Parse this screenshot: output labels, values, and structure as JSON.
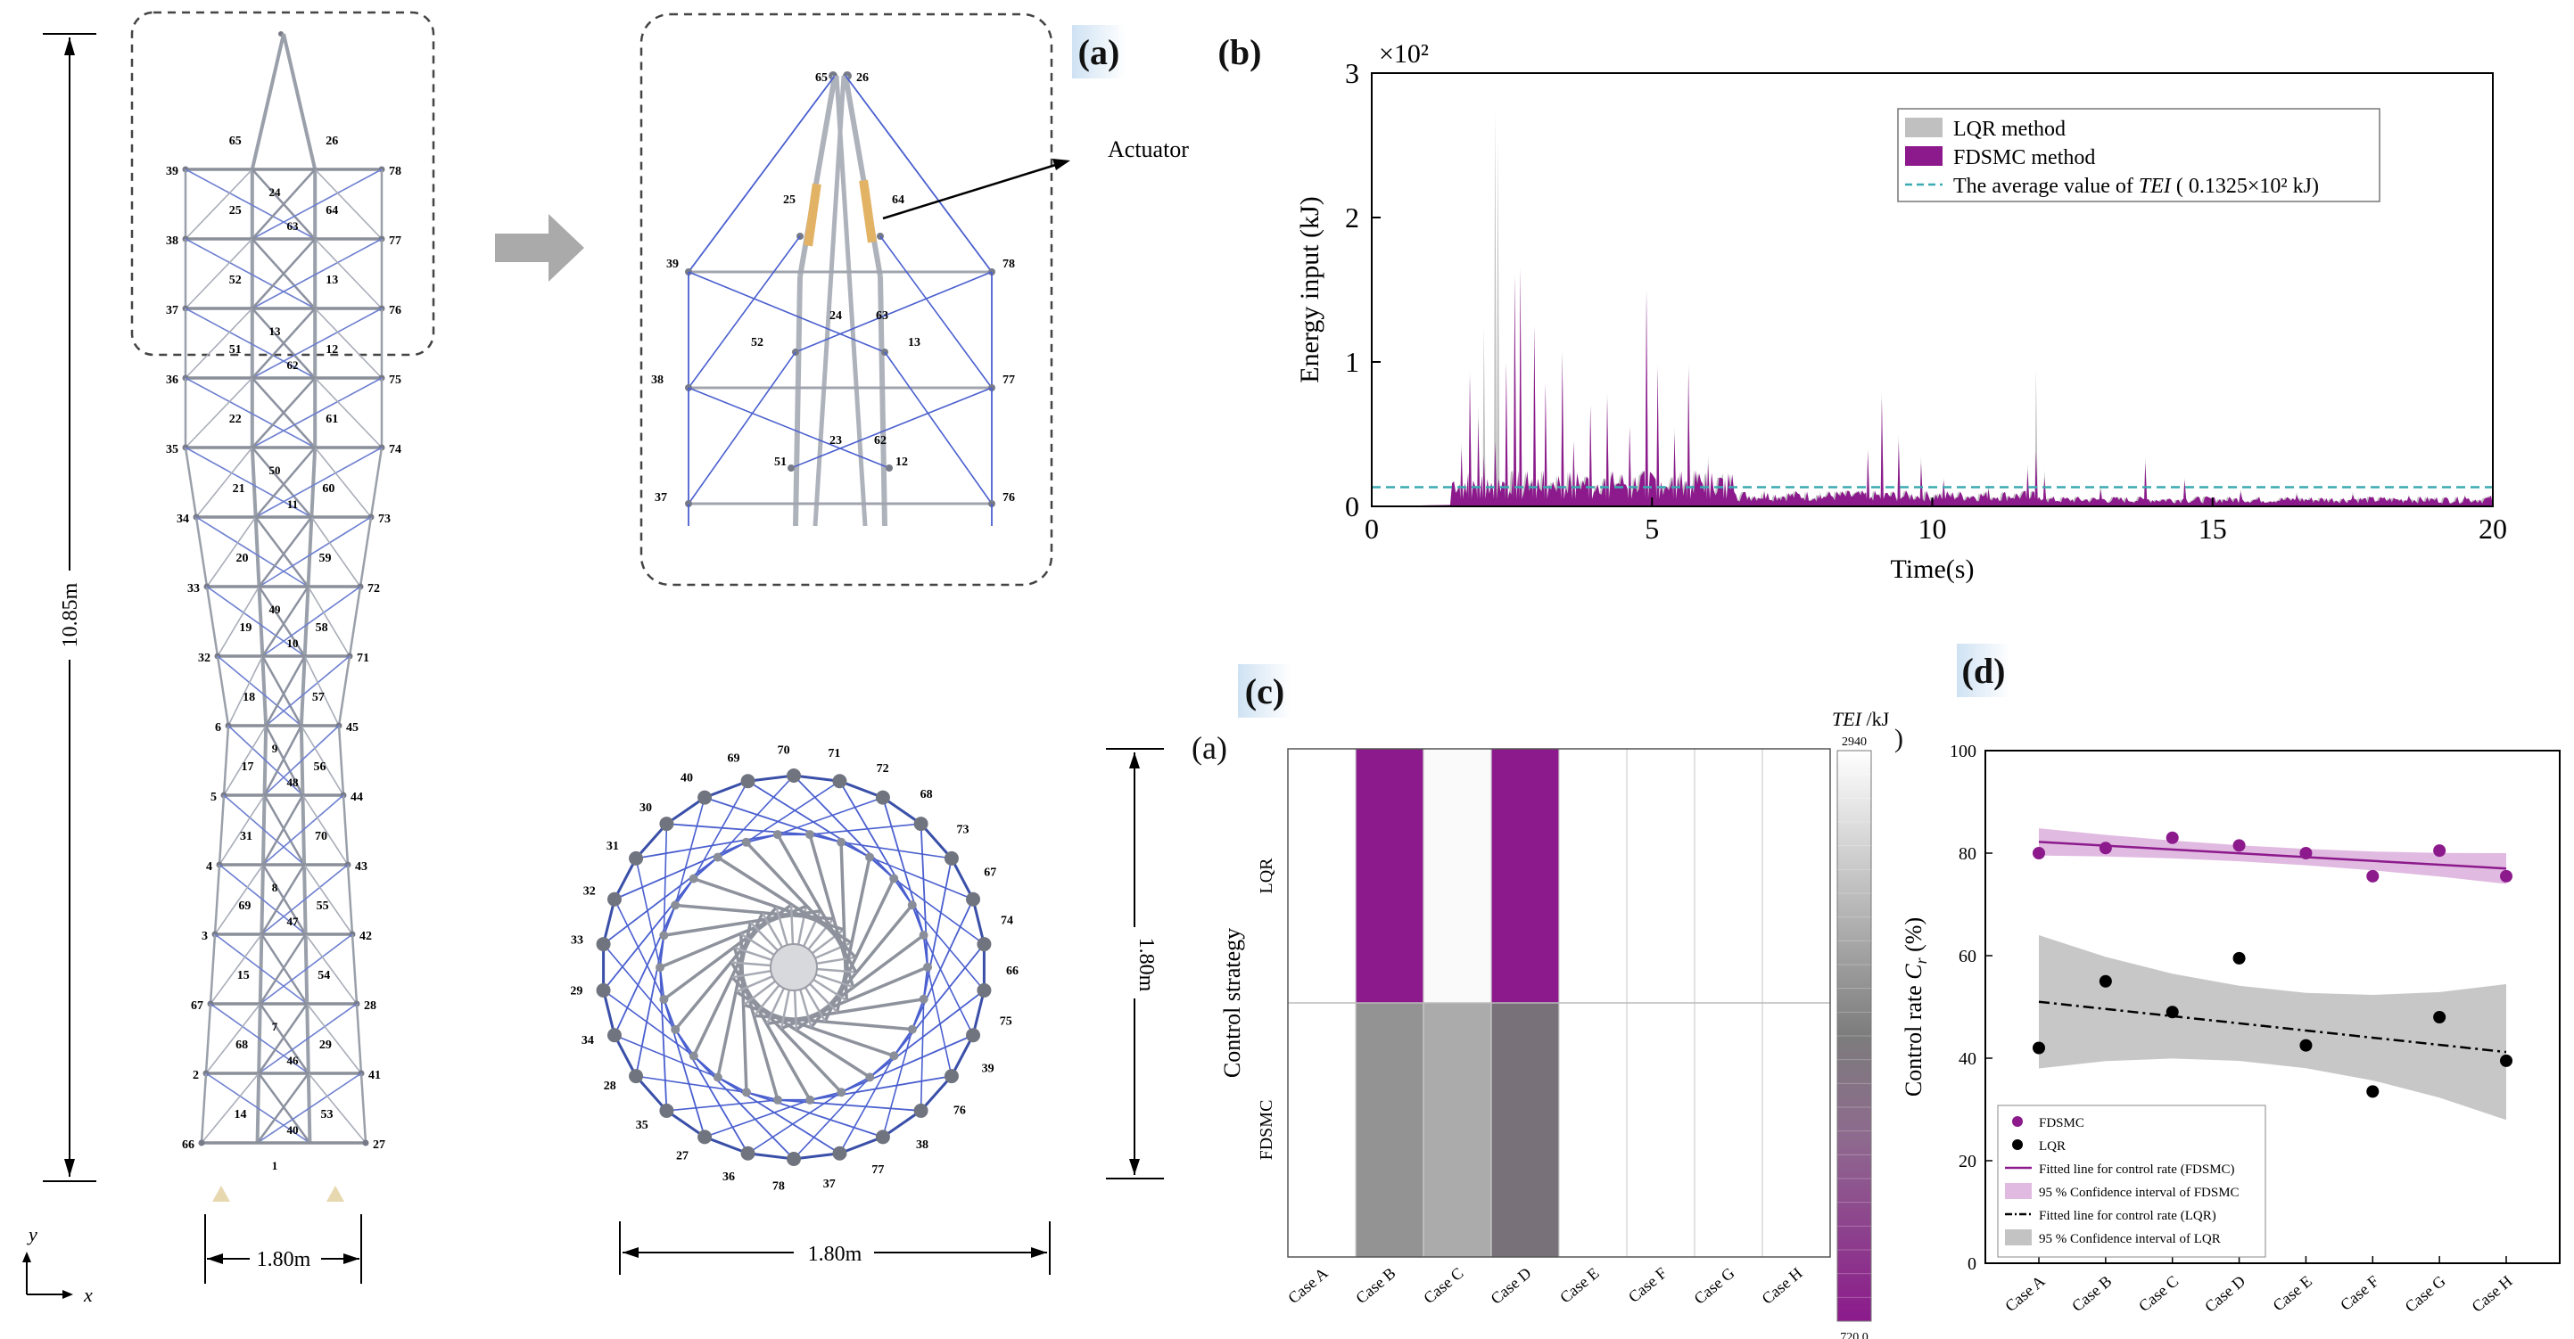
{
  "panels": {
    "a": "(a)",
    "b": "(b)",
    "c": "(c)",
    "d": "(d)",
    "c_stray": "(a)",
    "d_stray": ")"
  },
  "colors": {
    "lqr": "#c0c0c0",
    "fdsmc": "#8c1a8c",
    "avg_line": "#3aaab0",
    "member_gray": "#9aa0aa",
    "member_blue": "#4a5fcf",
    "node": "#777b88"
  },
  "tower": {
    "height_label": "10.85m",
    "base_label": "1.80m",
    "top_label": "1.80m",
    "plan_size_label": "1.80m",
    "axis_x": "x",
    "axis_y": "y",
    "actuator_label": "Actuator",
    "elevation_left_labels": [
      "39",
      "38",
      "37",
      "36",
      "35",
      "34",
      "33",
      "32",
      "6",
      "5",
      "4",
      "3",
      "67",
      "2",
      "66"
    ],
    "elevation_right_labels": [
      "78",
      "77",
      "76",
      "75",
      "74",
      "73",
      "72",
      "71",
      "45",
      "44",
      "43",
      "42",
      "28",
      "41",
      "27"
    ],
    "elevation_inner_left": [
      "65",
      "25",
      "52",
      "51",
      "22",
      "21",
      "20",
      "19",
      "18",
      "17",
      "31",
      "69",
      "15",
      "68",
      "14"
    ],
    "elevation_inner_right": [
      "26",
      "64",
      "13",
      "12",
      "61",
      "60",
      "59",
      "58",
      "57",
      "56",
      "70",
      "55",
      "54",
      "29",
      "53"
    ],
    "elevation_center": [
      "24",
      "63",
      "13",
      "62",
      "50",
      "11",
      "49",
      "10",
      "9",
      "48",
      "8",
      "47",
      "7",
      "46",
      "1",
      "40"
    ],
    "detail_labels": [
      "65",
      "26",
      "25",
      "64",
      "39",
      "78",
      "52",
      "24",
      "63",
      "13",
      "38",
      "77",
      "51",
      "23",
      "62",
      "12",
      "37",
      "76"
    ],
    "plan_labels": [
      "69",
      "70",
      "71",
      "72",
      "68",
      "73",
      "67",
      "74",
      "66",
      "75",
      "39",
      "76",
      "38",
      "77",
      "37",
      "78",
      "36",
      "27",
      "35",
      "28",
      "34",
      "29",
      "33",
      "32",
      "31",
      "30",
      "40"
    ]
  },
  "chart_data": [
    {
      "id": "b",
      "type": "area",
      "title": "",
      "xlabel": "Time(s)",
      "ylabel": "Energy input (kJ)",
      "y_multiplier": "×10²",
      "xlim": [
        0,
        20
      ],
      "ylim": [
        0,
        3
      ],
      "xticks": [
        0,
        5,
        10,
        15,
        20
      ],
      "yticks": [
        0,
        1,
        2,
        3
      ],
      "legend_position": "top-right",
      "series": [
        {
          "name": "LQR method",
          "peaks": [
            {
              "t": 1.6,
              "v": 0.45
            },
            {
              "t": 1.75,
              "v": 0.95
            },
            {
              "t": 1.9,
              "v": 0.7
            },
            {
              "t": 2.0,
              "v": 1.25
            },
            {
              "t": 2.2,
              "v": 2.75
            },
            {
              "t": 2.25,
              "v": 2.55
            },
            {
              "t": 2.55,
              "v": 1.6
            },
            {
              "t": 2.65,
              "v": 1.65
            },
            {
              "t": 2.9,
              "v": 1.25
            },
            {
              "t": 3.1,
              "v": 0.85
            },
            {
              "t": 3.4,
              "v": 1.1
            },
            {
              "t": 3.6,
              "v": 0.45
            },
            {
              "t": 3.9,
              "v": 0.7
            },
            {
              "t": 4.2,
              "v": 0.8
            },
            {
              "t": 4.6,
              "v": 0.55
            },
            {
              "t": 4.9,
              "v": 1.5
            },
            {
              "t": 5.1,
              "v": 1.0
            },
            {
              "t": 5.4,
              "v": 0.55
            },
            {
              "t": 5.65,
              "v": 1.0
            },
            {
              "t": 6.0,
              "v": 0.35
            },
            {
              "t": 6.3,
              "v": 0.2
            },
            {
              "t": 7.0,
              "v": 0.12
            },
            {
              "t": 8.0,
              "v": 0.1
            },
            {
              "t": 8.85,
              "v": 0.4
            },
            {
              "t": 9.1,
              "v": 0.8
            },
            {
              "t": 9.4,
              "v": 0.5
            },
            {
              "t": 9.8,
              "v": 0.35
            },
            {
              "t": 10.2,
              "v": 0.2
            },
            {
              "t": 11.0,
              "v": 0.15
            },
            {
              "t": 11.7,
              "v": 0.3
            },
            {
              "t": 11.85,
              "v": 0.95
            },
            {
              "t": 12.0,
              "v": 0.25
            },
            {
              "t": 13.0,
              "v": 0.15
            },
            {
              "t": 13.8,
              "v": 0.35
            },
            {
              "t": 14.5,
              "v": 0.2
            },
            {
              "t": 15.5,
              "v": 0.12
            },
            {
              "t": 16.5,
              "v": 0.1
            },
            {
              "t": 17.5,
              "v": 0.1
            },
            {
              "t": 18.5,
              "v": 0.08
            },
            {
              "t": 19.5,
              "v": 0.08
            }
          ]
        },
        {
          "name": "FDSMC method",
          "peaks": [
            {
              "t": 1.6,
              "v": 0.4
            },
            {
              "t": 1.75,
              "v": 0.9
            },
            {
              "t": 1.9,
              "v": 0.6
            },
            {
              "t": 2.0,
              "v": 0.35
            },
            {
              "t": 2.2,
              "v": 0.45
            },
            {
              "t": 2.4,
              "v": 1.0
            },
            {
              "t": 2.55,
              "v": 1.6
            },
            {
              "t": 2.65,
              "v": 1.65
            },
            {
              "t": 2.9,
              "v": 1.25
            },
            {
              "t": 3.1,
              "v": 0.85
            },
            {
              "t": 3.4,
              "v": 1.05
            },
            {
              "t": 3.6,
              "v": 0.45
            },
            {
              "t": 3.9,
              "v": 0.7
            },
            {
              "t": 4.2,
              "v": 0.75
            },
            {
              "t": 4.6,
              "v": 0.55
            },
            {
              "t": 4.9,
              "v": 1.5
            },
            {
              "t": 5.1,
              "v": 0.95
            },
            {
              "t": 5.4,
              "v": 0.5
            },
            {
              "t": 5.65,
              "v": 0.95
            },
            {
              "t": 6.0,
              "v": 0.3
            },
            {
              "t": 6.3,
              "v": 0.18
            },
            {
              "t": 7.0,
              "v": 0.1
            },
            {
              "t": 8.0,
              "v": 0.08
            },
            {
              "t": 8.85,
              "v": 0.38
            },
            {
              "t": 9.1,
              "v": 0.75
            },
            {
              "t": 9.4,
              "v": 0.45
            },
            {
              "t": 9.8,
              "v": 0.3
            },
            {
              "t": 10.2,
              "v": 0.18
            },
            {
              "t": 11.0,
              "v": 0.12
            },
            {
              "t": 11.7,
              "v": 0.25
            },
            {
              "t": 11.85,
              "v": 0.38
            },
            {
              "t": 12.0,
              "v": 0.2
            },
            {
              "t": 13.0,
              "v": 0.12
            },
            {
              "t": 13.8,
              "v": 0.3
            },
            {
              "t": 14.5,
              "v": 0.18
            },
            {
              "t": 15.5,
              "v": 0.1
            },
            {
              "t": 16.5,
              "v": 0.08
            },
            {
              "t": 17.5,
              "v": 0.08
            },
            {
              "t": 18.5,
              "v": 0.07
            },
            {
              "t": 19.5,
              "v": 0.07
            }
          ]
        }
      ],
      "average_line": {
        "label_prefix": "The average value of ",
        "label_var": "TEI",
        "label_suffix": " ( 0.1325×10² kJ)",
        "value": 0.1325
      }
    },
    {
      "id": "c",
      "type": "heatmap",
      "ylabel": "Control strategy",
      "rows": [
        "LQR",
        "FDSMC"
      ],
      "categories": [
        "Case A",
        "Case B",
        "Case C",
        "Case D",
        "Case E",
        "Case F",
        "Case G",
        "Case H"
      ],
      "colorbar_label_var": "TEI",
      "colorbar_label_unit": " /kJ",
      "colorbar_max_label": "2940",
      "colorbar_min_label": "720.0",
      "colorbar_range": [
        720,
        2940
      ],
      "values": [
        [
          2940,
          720,
          2900,
          720,
          2940,
          2940,
          2940,
          2940
        ],
        [
          2940,
          2050,
          2250,
          1750,
          2940,
          2940,
          2940,
          2940
        ]
      ]
    },
    {
      "id": "d",
      "type": "scatter",
      "ylabel_prefix": "Control rate ",
      "ylabel_var": "C",
      "ylabel_sub": "r",
      "ylabel_suffix": " (%)",
      "categories": [
        "Case A",
        "Case B",
        "Case C",
        "Case D",
        "Case E",
        "Case F",
        "Case G",
        "Case H"
      ],
      "ylim": [
        0,
        100
      ],
      "yticks": [
        0,
        20,
        40,
        60,
        80,
        100
      ],
      "legend_position": "bottom-left",
      "series": [
        {
          "name": "FDSMC",
          "values": [
            80,
            81,
            83,
            81.5,
            80,
            75.5,
            80.5,
            75.5
          ]
        },
        {
          "name": "LQR",
          "values": [
            42,
            55,
            49,
            59.5,
            42.5,
            33.5,
            48,
            39.5
          ]
        }
      ],
      "fits": [
        {
          "name": "Fitted line for control rate (FDSMC)",
          "start": 82.2,
          "end": 77.0,
          "ci_low": [
            79.5,
            74.0
          ],
          "ci_high": [
            84.8,
            80.0
          ]
        },
        {
          "name": "Fitted line for control rate (LQR)",
          "start": 51.0,
          "end": 41.2,
          "ci_low": [
            38.0,
            28.0
          ],
          "ci_high": [
            64.0,
            54.5
          ]
        }
      ],
      "ci_labels": [
        "95 % Confidence interval of  FDSMC",
        "95 % Confidence interval of  LQR"
      ]
    }
  ]
}
